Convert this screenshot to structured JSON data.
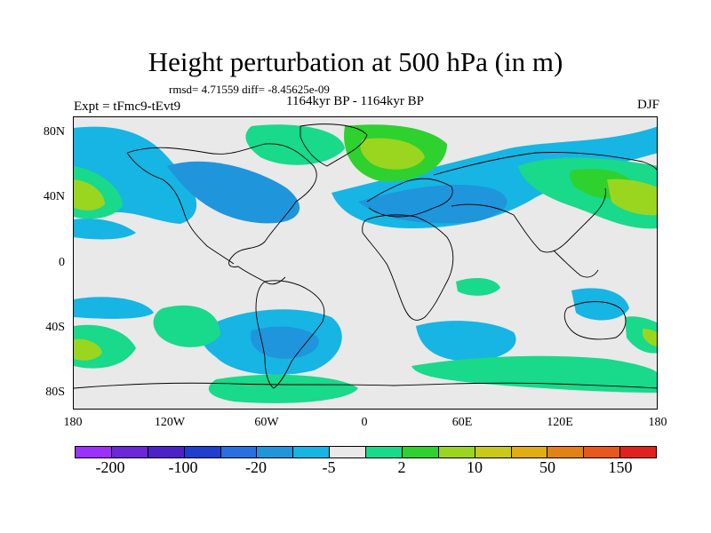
{
  "header": {
    "title": "Height perturbation at 500 hPa (in m)",
    "stats": "rmsd= 4.71559 diff= -8.45625e-09",
    "period": "1164kyr BP - 1164kyr BP",
    "experiment": "Expt = tFmc9-tEvt9",
    "season": "DJF"
  },
  "axes": {
    "lat_labels": [
      "80N",
      "40N",
      "0",
      "40S",
      "80S"
    ],
    "lon_labels": [
      "180",
      "120W",
      "60W",
      "0",
      "60E",
      "120E",
      "180"
    ]
  },
  "colorbar": {
    "colors": [
      "#9b30ff",
      "#6a28d8",
      "#4b22c8",
      "#1f3fcf",
      "#2a6fe0",
      "#1f95dc",
      "#16b5e3",
      "#e9e9e9",
      "#19d98a",
      "#2ed12e",
      "#9ad61f",
      "#c9c91a",
      "#e0ad12",
      "#e38214",
      "#e8571c",
      "#e1211e"
    ],
    "labels": [
      "-200",
      "-100",
      "-20",
      "-5",
      "2",
      "10",
      "50",
      "150"
    ]
  },
  "map_colors": {
    "background": "#e9e9e9",
    "coast": "#000000"
  }
}
